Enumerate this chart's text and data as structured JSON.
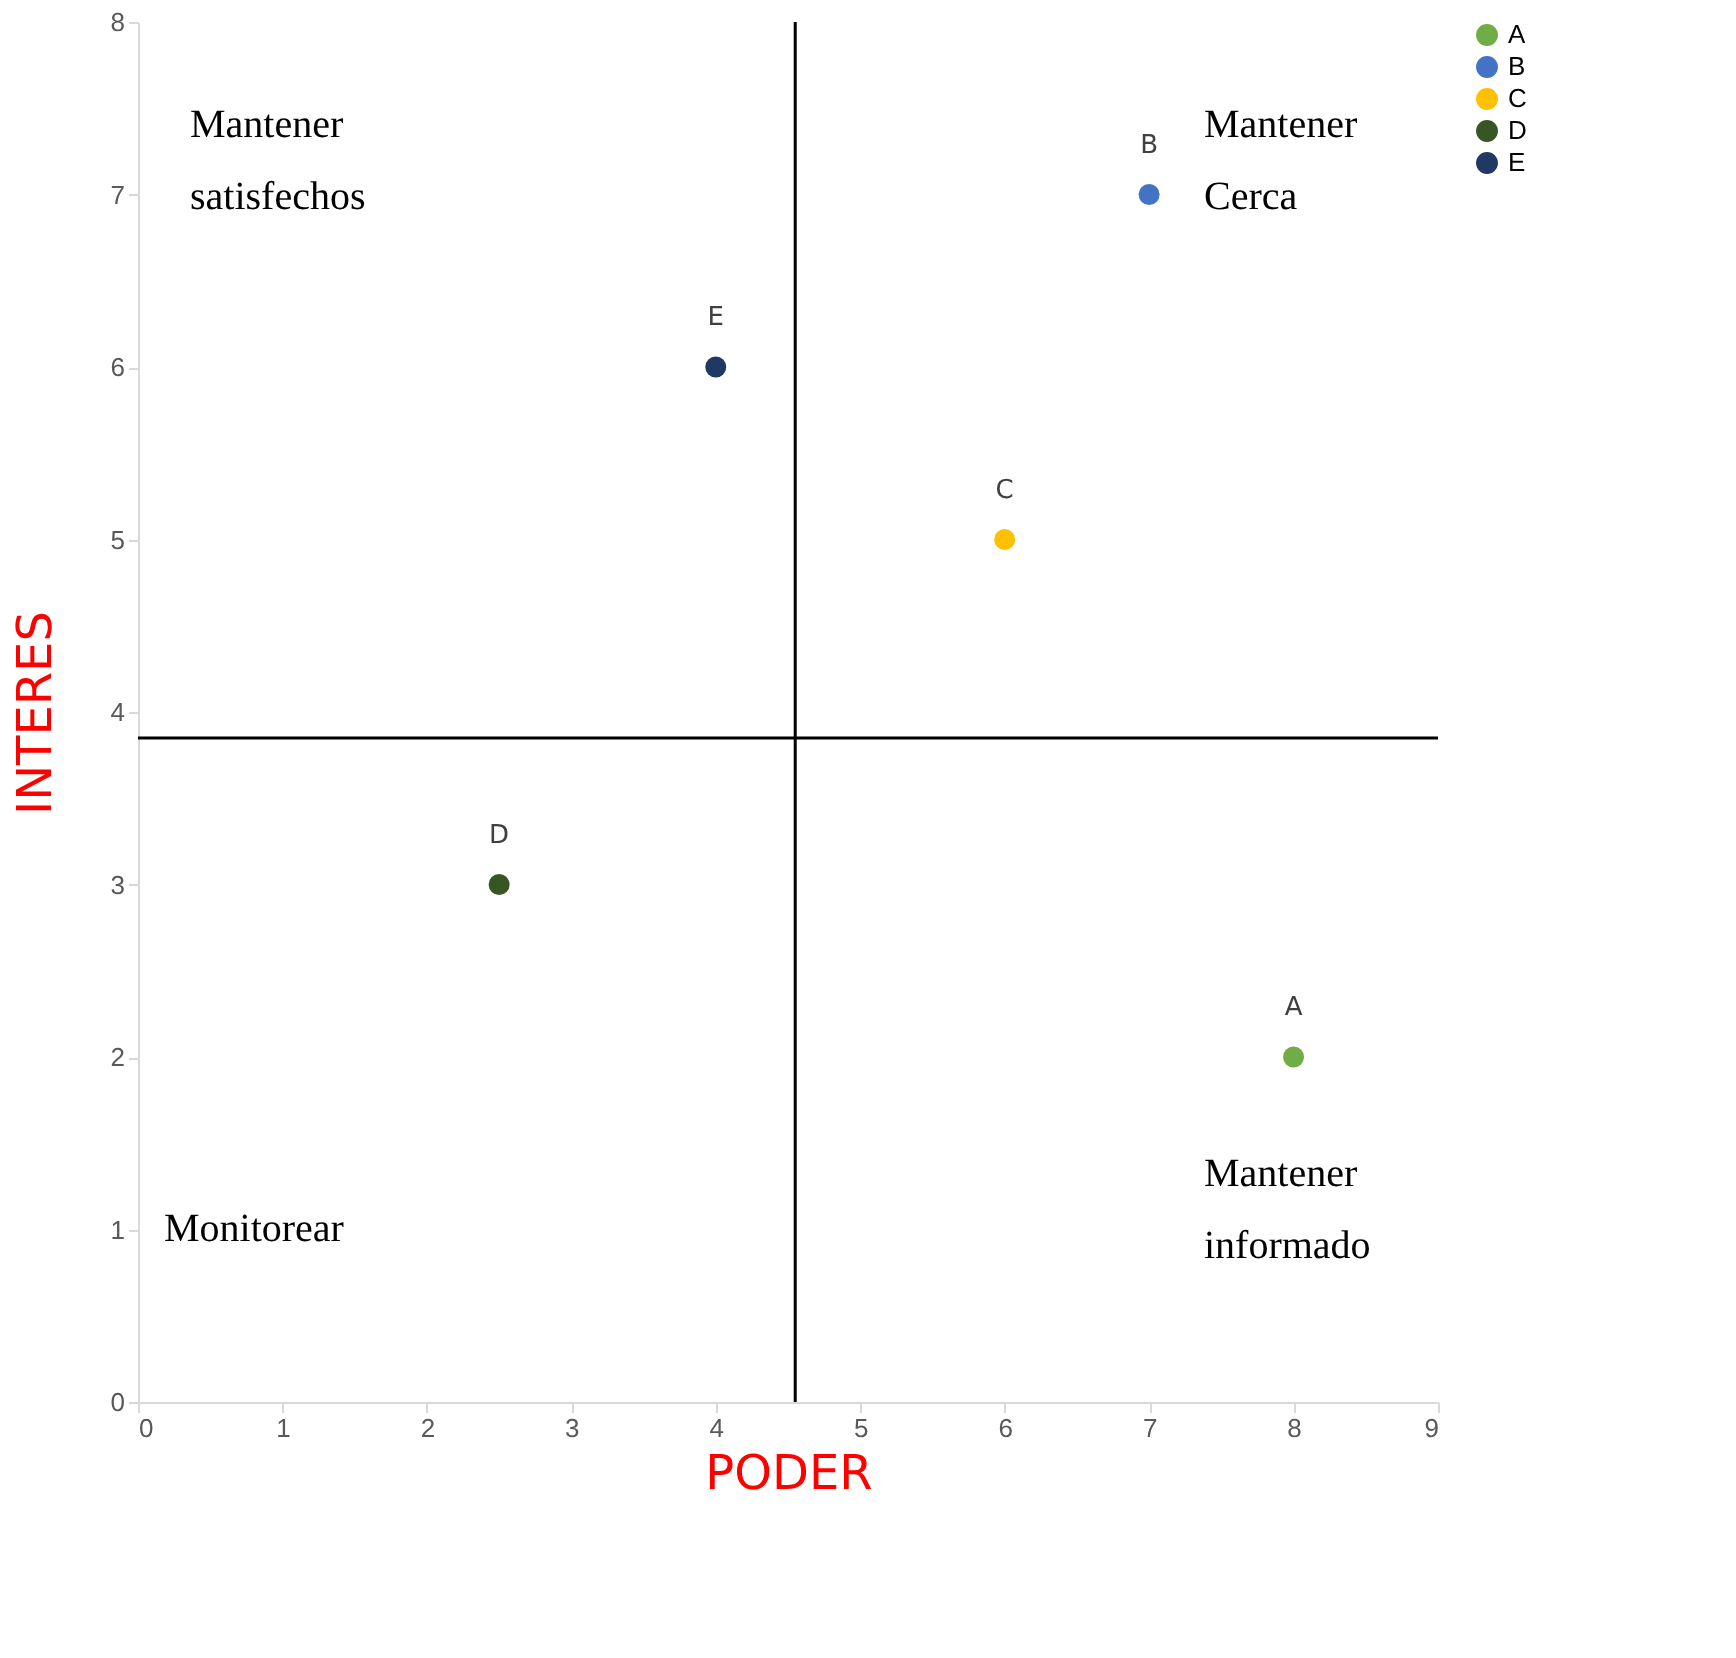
{
  "chart_data": {
    "type": "scatter",
    "xlabel": "PODER",
    "ylabel": "INTERES",
    "xlim": [
      0,
      9
    ],
    "xticks": [
      0,
      1,
      2,
      3,
      4,
      5,
      6,
      7,
      8,
      9
    ],
    "ylim": [
      0,
      8
    ],
    "yticks": [
      0,
      1,
      2,
      3,
      4,
      5,
      6,
      7,
      8
    ],
    "grid": false,
    "legend": "right",
    "marker": "circle",
    "series": [
      {
        "name": "A",
        "color": "#70ad47",
        "x": [
          8
        ],
        "values": [
          2
        ]
      },
      {
        "name": "B",
        "color": "#4472c4",
        "x": [
          7
        ],
        "values": [
          7
        ]
      },
      {
        "name": "C",
        "color": "#ffc000",
        "x": [
          6
        ],
        "values": [
          5
        ]
      },
      {
        "name": "D",
        "color": "#375623",
        "x": [
          2.5
        ],
        "values": [
          3
        ]
      },
      {
        "name": "E",
        "color": "#203864",
        "x": [
          4
        ],
        "values": [
          6
        ]
      }
    ],
    "ref_lines": [
      {
        "axis": "y",
        "value": 3.85,
        "color": "#000000"
      },
      {
        "axis": "x",
        "value": 4.55,
        "color": "#000000"
      }
    ],
    "annotations": [
      "Mantener\nsatisfechos",
      "Mantener\nCerca",
      "Mantener\ninformado",
      "Monitorear"
    ]
  }
}
